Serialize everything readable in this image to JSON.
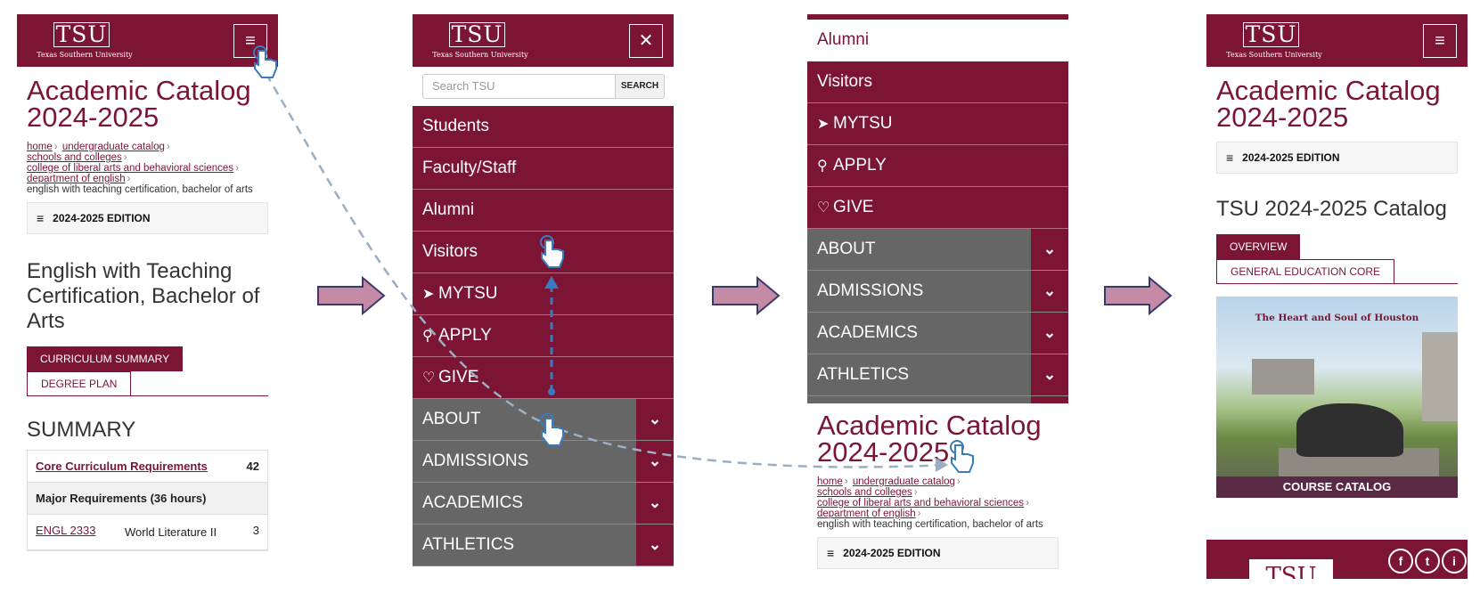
{
  "brand": {
    "logo_text": "TSU",
    "logo_sub": "Texas Southern University",
    "color": "#7b1533"
  },
  "panel1": {
    "title_lines": [
      "Academic Catalog",
      "2024-2025"
    ],
    "breadcrumbs": [
      "home",
      "undergraduate catalog",
      "schools and colleges",
      "college of liberal arts and behavioral sciences",
      "department of english"
    ],
    "current_crumb": "english with teaching certification, bachelor of arts",
    "edition": "2024-2025 EDITION",
    "program_title": "English with Teaching Certification, Bachelor of Arts",
    "tabs": [
      "CURRICULUM SUMMARY",
      "DEGREE PLAN"
    ],
    "section": "SUMMARY",
    "rows": [
      {
        "label": "Core Curriculum Requirements",
        "value": "42"
      },
      {
        "label": "Major Requirements (36 hours)"
      },
      {
        "code": "ENGL 2333",
        "desc": "World Literature II",
        "value": "3"
      }
    ]
  },
  "panel2": {
    "search_placeholder": "Search TSU",
    "search_button": "SEARCH",
    "menu": [
      "Students",
      "Faculty/Staff",
      "Alumni",
      "Visitors",
      "MYTSU",
      "APPLY",
      "GIVE",
      "ABOUT",
      "ADMISSIONS",
      "ACADEMICS",
      "ATHLETICS"
    ]
  },
  "panel3": {
    "menu": [
      "Alumni",
      "Visitors",
      "MYTSU",
      "APPLY",
      "GIVE",
      "ABOUT",
      "ADMISSIONS",
      "ACADEMICS",
      "ATHLETICS"
    ],
    "title_lines": [
      "Academic Catalog",
      "2024-2025"
    ],
    "breadcrumbs": [
      "home",
      "undergraduate catalog",
      "schools and colleges",
      "college of liberal arts and behavioral sciences",
      "department of english"
    ],
    "current_crumb": "english with teaching certification, bachelor of arts",
    "edition": "2024-2025 EDITION"
  },
  "panel4": {
    "title_lines": [
      "Academic Catalog",
      "2024-2025"
    ],
    "edition": "2024-2025 EDITION",
    "catalog_title": "TSU 2024-2025 Catalog",
    "tabs": [
      "OVERVIEW",
      "GENERAL EDUCATION CORE"
    ],
    "image_tagline": "The Heart and Soul of Houston",
    "image_caption": "COURSE CATALOG",
    "footer_logo": "TSU",
    "social": [
      "f",
      "t",
      "i"
    ]
  },
  "icons": {
    "menu": "hamburger-icon",
    "close": "close-icon",
    "chevron": "chevron-down-icon",
    "location": "location-arrow-icon",
    "pin": "map-pin-icon",
    "heart": "heart-icon",
    "tap": "tap-hand-icon",
    "arrow": "right-arrow-icon"
  }
}
